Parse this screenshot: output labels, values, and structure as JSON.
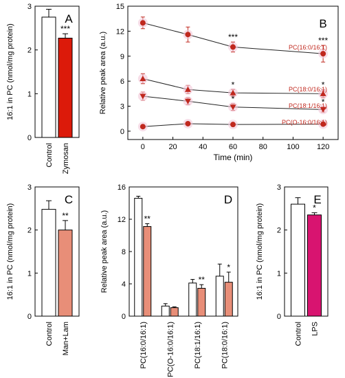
{
  "chart_data": [
    {
      "panel": "A",
      "type": "bar",
      "ylabel": "16:1 in PC (nmol/mg protein)",
      "ylim": [
        0,
        3
      ],
      "yticks": [
        "0",
        "1",
        "2",
        "3"
      ],
      "categories": [
        "Control",
        "Zymosan"
      ],
      "values": [
        2.75,
        2.27
      ],
      "errors": [
        0.18,
        0.1
      ],
      "colors": [
        "#ffffff",
        "#dc1a0a"
      ],
      "significance": [
        "",
        "***"
      ]
    },
    {
      "panel": "B",
      "type": "line",
      "xlabel": "Time (min)",
      "ylabel": "Relative peak area (a.u.)",
      "xlim": [
        -10,
        130
      ],
      "ylim": [
        -1,
        15
      ],
      "xticks": [
        "0",
        "20",
        "40",
        "60",
        "80",
        "100",
        "120"
      ],
      "yticks": [
        "0",
        "3",
        "6",
        "9",
        "12",
        "15"
      ],
      "x": [
        0,
        30,
        60,
        120
      ],
      "series": [
        {
          "name": "PC(16:0/16:1)",
          "marker": "circle",
          "values": [
            13.0,
            11.6,
            10.1,
            9.3
          ],
          "errors": [
            0.7,
            0.9,
            0.6,
            1.0
          ],
          "significance": [
            "",
            "",
            "***",
            "***"
          ]
        },
        {
          "name": "PC(18:0/16:1)",
          "marker": "triangle-up",
          "values": [
            6.3,
            5.0,
            4.6,
            4.5
          ],
          "errors": [
            0.6,
            0.5,
            0.4,
            0.5
          ],
          "significance": [
            "",
            "",
            "*",
            "*"
          ]
        },
        {
          "name": "PC(18:1/16:1)",
          "marker": "triangle-down",
          "values": [
            4.2,
            3.6,
            2.9,
            2.6
          ],
          "errors": [
            0.5,
            0.4,
            0.4,
            0.3
          ],
          "significance": [
            "",
            "",
            "*",
            "*"
          ]
        },
        {
          "name": "PC(O-16:0/16:1)",
          "marker": "circle",
          "values": [
            0.55,
            0.9,
            0.8,
            0.85
          ],
          "errors": [
            0.1,
            0.1,
            0.1,
            0.1
          ],
          "significance": [
            "",
            "",
            "",
            ""
          ]
        }
      ],
      "line_color": "#222222",
      "marker_color": "#c0281e",
      "label_color": "#c0281e"
    },
    {
      "panel": "C",
      "type": "bar",
      "ylabel": "16:1 in PC (nmol/mg protein)",
      "ylim": [
        0,
        3
      ],
      "yticks": [
        "0",
        "1",
        "2",
        "3"
      ],
      "categories": [
        "Control",
        "Man+Lam"
      ],
      "values": [
        2.48,
        2.0
      ],
      "errors": [
        0.2,
        0.22
      ],
      "colors": [
        "#ffffff",
        "#e88e78"
      ],
      "significance": [
        "",
        "**"
      ]
    },
    {
      "panel": "D",
      "type": "bar",
      "ylabel": "Relative peak area (a.u.)",
      "ylim": [
        0,
        16
      ],
      "yticks": [
        "0",
        "4",
        "8",
        "12",
        "16"
      ],
      "categories": [
        "PC(16:0/16:1)",
        "PC(O-16:0/16:1)",
        "PC(18:1/16:1)",
        "PC(18:0/16:1)"
      ],
      "series": [
        {
          "values": [
            14.6,
            1.25,
            4.1,
            4.95
          ],
          "errors": [
            0.25,
            0.3,
            0.45,
            1.5
          ],
          "color": "#ffffff",
          "significance": [
            "",
            "",
            "",
            ""
          ]
        },
        {
          "values": [
            11.1,
            1.05,
            3.45,
            4.2
          ],
          "errors": [
            0.35,
            0.1,
            0.45,
            1.25
          ],
          "color": "#e88e78",
          "significance": [
            "**",
            "",
            "**",
            "*"
          ]
        }
      ]
    },
    {
      "panel": "E",
      "type": "bar",
      "ylabel": "16:1 in PC (nmol/mg protein)",
      "ylim": [
        0,
        3
      ],
      "yticks": [
        "0",
        "1",
        "2",
        "3"
      ],
      "categories": [
        "Control",
        "LPS"
      ],
      "values": [
        2.6,
        2.35
      ],
      "errors": [
        0.15,
        0.05
      ],
      "colors": [
        "#ffffff",
        "#d81470"
      ],
      "significance": [
        "",
        "*"
      ]
    }
  ]
}
